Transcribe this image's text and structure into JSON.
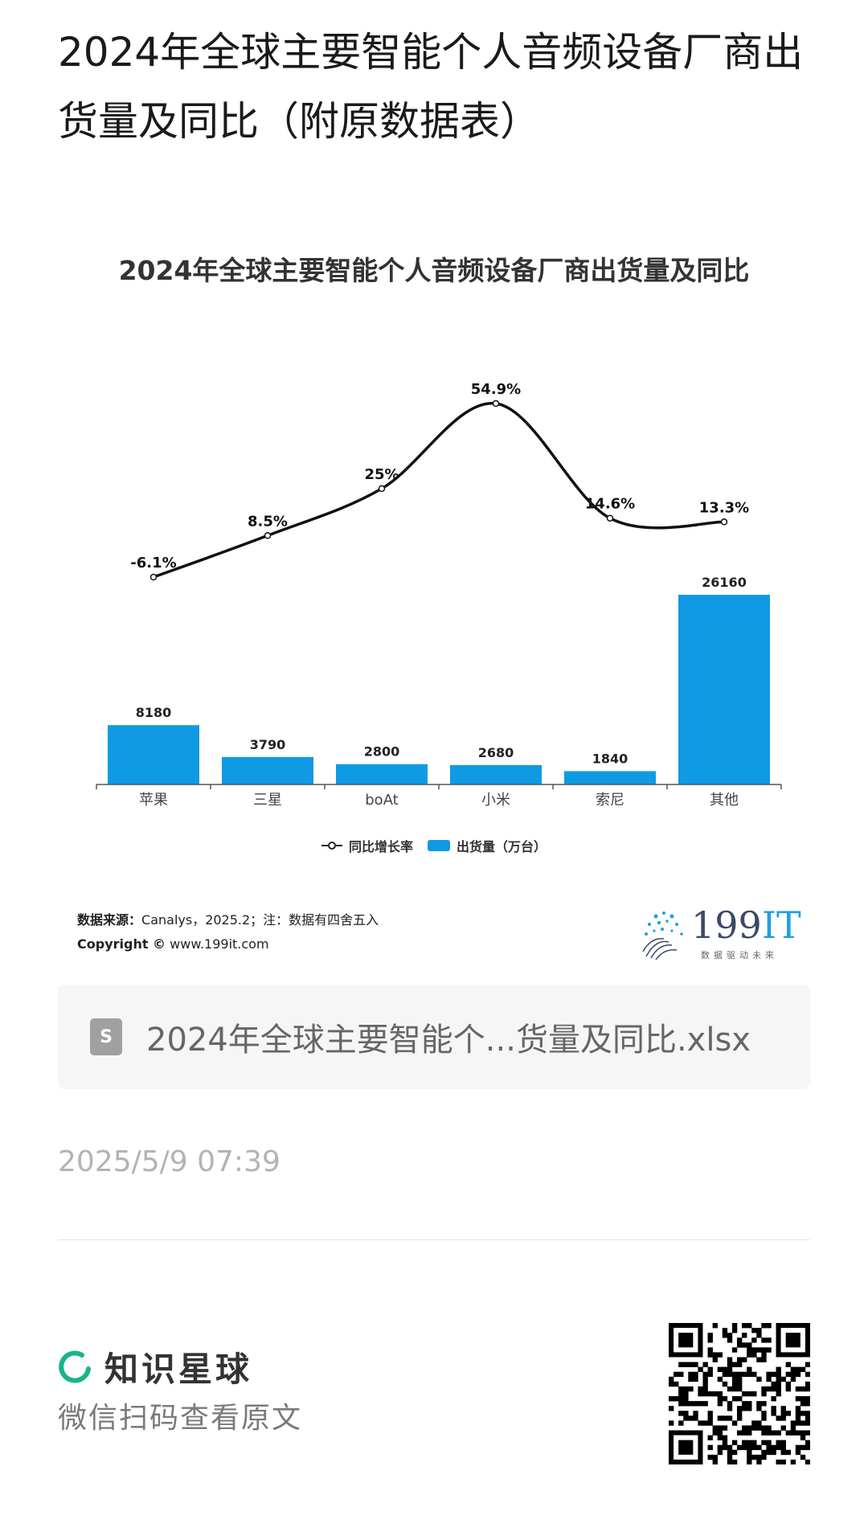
{
  "page": {
    "title": "2024年全球主要智能个人音频设备厂商出货量及同比（附原数据表）"
  },
  "chart_data": {
    "type": "bar",
    "title": "2024年全球主要智能个人音频设备厂商出货量及同比",
    "categories": [
      "苹果",
      "三星",
      "boAt",
      "小米",
      "索尼",
      "其他"
    ],
    "series": [
      {
        "name": "出货量（万台）",
        "type": "bar",
        "values": [
          8180,
          3790,
          2800,
          2680,
          1840,
          26160
        ],
        "color": "#0f9ae3"
      },
      {
        "name": "同比增长率",
        "type": "line",
        "values": [
          -6.1,
          8.5,
          25,
          54.9,
          14.6,
          13.3
        ],
        "value_labels": [
          "-6.1%",
          "8.5%",
          "25%",
          "54.9%",
          "14.6%",
          "13.3%"
        ],
        "color": "#111111"
      }
    ],
    "legend_position": "bottom",
    "grid": false
  },
  "chart_footer": {
    "source_label": "数据来源：",
    "source_text": "Canalys，2025.2；注：数据有四舍五入",
    "copyright_label": "Copyright ©",
    "copyright_text": "www.199it.com",
    "brand_number": "199",
    "brand_suffix": "IT",
    "brand_slogan": "数据驱动未来"
  },
  "attachment": {
    "icon": "spreadsheet-file-icon",
    "icon_glyph": "S",
    "filename": "2024年全球主要智能个...货量及同比.xlsx"
  },
  "meta": {
    "timestamp": "2025/5/9 07:39"
  },
  "footer": {
    "brand": "知识星球",
    "scan_text": "微信扫码查看原文",
    "qr_icon": "qr-code-icon"
  }
}
